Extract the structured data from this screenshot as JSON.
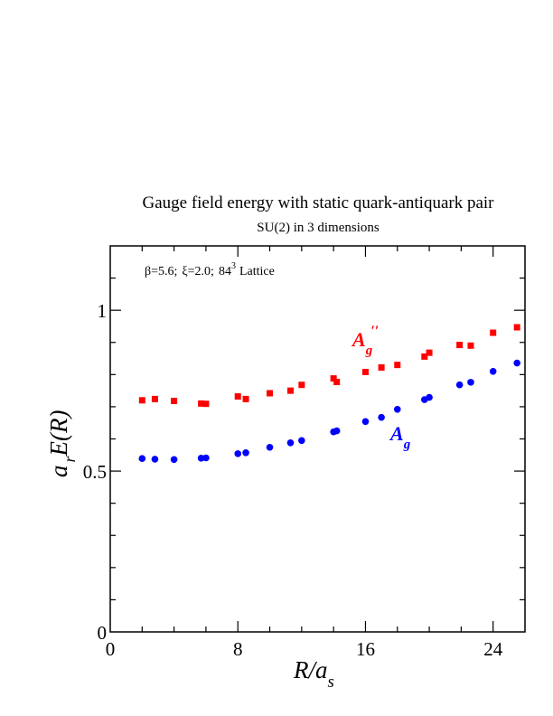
{
  "chart_data": {
    "type": "scatter",
    "title": "Gauge field energy with static quark-antiquark pair",
    "subtitle": "SU(2) in 3 dimensions",
    "annotation": {
      "beta": "β=5.6;",
      "xi": "ξ=2.0;",
      "lattice_base": "84",
      "lattice_exp": "3",
      "lattice_suffix": "Lattice"
    },
    "xlabel": {
      "main": "R/a",
      "sub": "s"
    },
    "ylabel": {
      "a": "a",
      "sub": "r",
      "rest": "E(R)"
    },
    "xlim": [
      0,
      26
    ],
    "ylim": [
      0,
      1.2
    ],
    "x_ticks": [
      0,
      8,
      16,
      24
    ],
    "x_tick_labels": [
      "0",
      "8",
      "16",
      "24"
    ],
    "y_ticks": [
      0,
      0.5,
      1
    ],
    "y_tick_labels": [
      "0",
      "0.5",
      "1"
    ],
    "grid": false,
    "series": [
      {
        "name": "A_g''",
        "label_main": "A",
        "label_sub": "g",
        "label_sup": "′′",
        "color": "#ff0000",
        "marker": "square",
        "points": [
          [
            2.0,
            0.72
          ],
          [
            2.8,
            0.724
          ],
          [
            4.0,
            0.718
          ],
          [
            5.7,
            0.71
          ],
          [
            6.0,
            0.709
          ],
          [
            8.0,
            0.732
          ],
          [
            8.5,
            0.724
          ],
          [
            10.0,
            0.742
          ],
          [
            11.3,
            0.75
          ],
          [
            12.0,
            0.768
          ],
          [
            14.0,
            0.788
          ],
          [
            14.2,
            0.777
          ],
          [
            16.0,
            0.808
          ],
          [
            17.0,
            0.822
          ],
          [
            18.0,
            0.83
          ],
          [
            19.7,
            0.856
          ],
          [
            20.0,
            0.868
          ],
          [
            21.9,
            0.892
          ],
          [
            22.6,
            0.89
          ],
          [
            24.0,
            0.93
          ],
          [
            25.5,
            0.947
          ]
        ]
      },
      {
        "name": "A_g",
        "label_main": "A",
        "label_sub": "g",
        "label_sup": "",
        "color": "#0000ff",
        "marker": "circle",
        "points": [
          [
            2.0,
            0.539
          ],
          [
            2.8,
            0.537
          ],
          [
            4.0,
            0.536
          ],
          [
            5.7,
            0.54
          ],
          [
            6.0,
            0.541
          ],
          [
            8.0,
            0.554
          ],
          [
            8.5,
            0.557
          ],
          [
            10.0,
            0.574
          ],
          [
            11.3,
            0.588
          ],
          [
            12.0,
            0.595
          ],
          [
            14.0,
            0.622
          ],
          [
            14.2,
            0.625
          ],
          [
            16.0,
            0.654
          ],
          [
            17.0,
            0.667
          ],
          [
            18.0,
            0.692
          ],
          [
            19.7,
            0.722
          ],
          [
            20.0,
            0.729
          ],
          [
            21.9,
            0.768
          ],
          [
            22.6,
            0.776
          ],
          [
            24.0,
            0.81
          ],
          [
            25.5,
            0.836
          ]
        ]
      }
    ]
  }
}
